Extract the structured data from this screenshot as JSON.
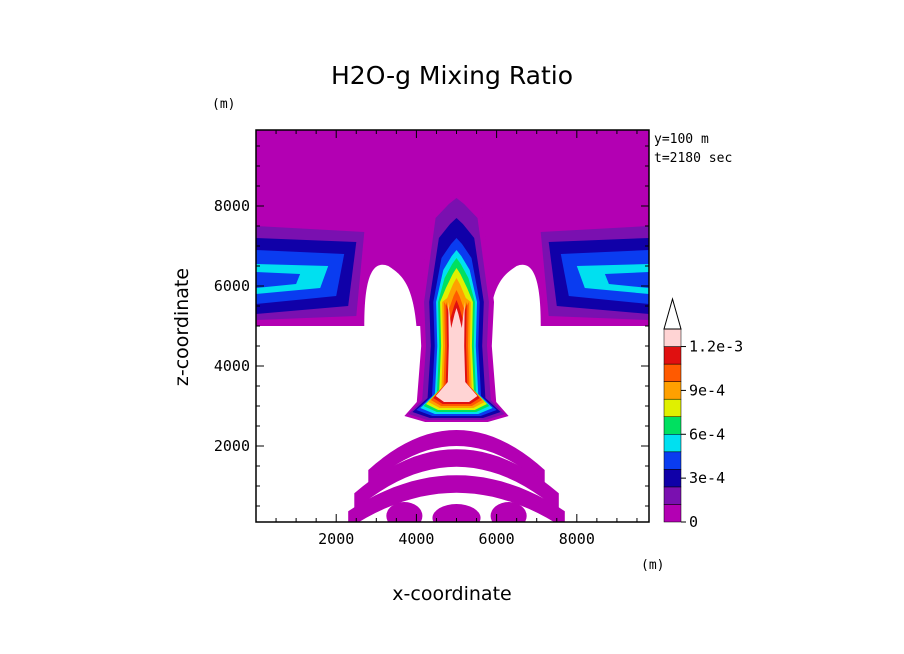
{
  "chart_data": {
    "type": "heatmap",
    "title": "H2O-g Mixing Ratio",
    "xlabel": "x-coordinate",
    "ylabel": "z-coordinate",
    "x_unit": "(m)",
    "y_unit": "(m)",
    "annotations": [
      "y=100 m",
      "t=2180 sec"
    ],
    "xlim": [
      0,
      9800
    ],
    "ylim": [
      100,
      9900
    ],
    "x_ticks": [
      2000,
      4000,
      6000,
      8000
    ],
    "y_ticks": [
      2000,
      4000,
      6000,
      8000
    ],
    "x_tick_labels": [
      "2000",
      "4000",
      "6000",
      "8000"
    ],
    "y_tick_labels": [
      "2000",
      "4000",
      "6000",
      "8000"
    ],
    "colorbar": {
      "levels": [
        0,
        0.00015,
        0.0003,
        0.00045,
        0.0006,
        0.00075,
        0.0009,
        0.00105,
        0.0012
      ],
      "labels": [
        "0",
        "3e-4",
        "6e-4",
        "9e-4",
        "1.2e-3"
      ],
      "label_values": [
        0,
        0.0003,
        0.0006,
        0.0009,
        0.0012
      ],
      "colors": [
        "#b300b3",
        "#7a10b0",
        "#1000a8",
        "#0a3cf0",
        "#00e0f0",
        "#00e060",
        "#e0f000",
        "#ffa000",
        "#ff5a00",
        "#e01010",
        "#ffd4d4"
      ],
      "extend_max": true
    },
    "field": {
      "background": "#ffffff",
      "upper_layer": {
        "z_range": [
          5000,
          9900
        ],
        "value": 0.0001
      },
      "plume": {
        "x_center": 5000,
        "z_range": [
          2600,
          8600
        ],
        "max_value": 0.0013
      },
      "lower_arcs": {
        "x_center": 5000,
        "z_range": [
          100,
          2300
        ],
        "value": 0.0001
      }
    }
  }
}
